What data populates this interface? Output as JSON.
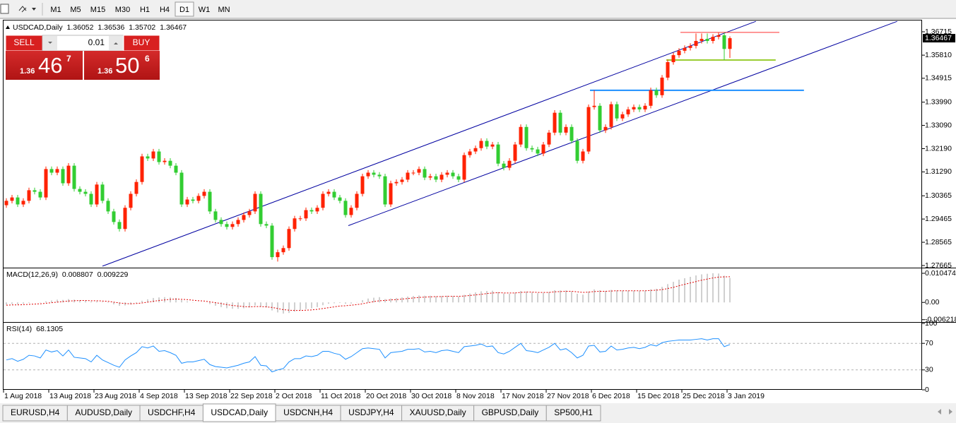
{
  "toolbar": {
    "timeframes": [
      "M1",
      "M5",
      "M15",
      "M30",
      "H1",
      "H4",
      "D1",
      "W1",
      "MN"
    ],
    "selected": "D1"
  },
  "trade": {
    "sell": "SELL",
    "buy": "BUY",
    "volume": "0.01",
    "bid": {
      "prefix": "1.36",
      "big": "46",
      "small": "7"
    },
    "ask": {
      "prefix": "1.36",
      "big": "50",
      "small": "6"
    }
  },
  "tabs": {
    "items": [
      "EURUSD,H4",
      "AUDUSD,Daily",
      "USDCHF,H4",
      "USDCAD,Daily",
      "USDCNH,H4",
      "USDJPY,H4",
      "XAUUSD,Daily",
      "GBPUSD,Daily",
      "SP500,H1"
    ],
    "selected": "USDCAD,Daily"
  },
  "chart_data": [
    {
      "type": "candlestick",
      "title": "USDCAD,Daily",
      "up_color": "#ff2200",
      "down_color": "#32cd32",
      "categories": [
        "1 Aug 2018",
        null,
        null,
        null,
        null,
        null,
        null,
        null,
        "13 Aug 2018",
        null,
        null,
        null,
        null,
        null,
        null,
        null,
        "23 Aug 2018",
        null,
        null,
        null,
        null,
        null,
        null,
        null,
        "4 Sep 2018",
        null,
        null,
        null,
        null,
        null,
        null,
        null,
        "13 Sep 2018",
        null,
        null,
        null,
        null,
        null,
        null,
        null,
        "22 Sep 2018",
        null,
        null,
        null,
        null,
        null,
        null,
        null,
        "2 Oct 2018",
        null,
        null,
        null,
        null,
        null,
        null,
        null,
        "11 Oct 2018",
        null,
        null,
        null,
        null,
        null,
        null,
        null,
        "20 Oct 2018",
        null,
        null,
        null,
        null,
        null,
        null,
        null,
        "30 Oct 2018",
        null,
        null,
        null,
        null,
        null,
        null,
        null,
        "8 Nov 2018",
        null,
        null,
        null,
        null,
        null,
        null,
        null,
        "17 Nov 2018",
        null,
        null,
        null,
        null,
        null,
        null,
        null,
        "27 Nov 2018",
        null,
        null,
        null,
        null,
        null,
        null,
        null,
        "6 Dec 2018",
        null,
        null,
        null,
        null,
        null,
        null,
        null,
        "15 Dec 2018",
        null,
        null,
        null,
        null,
        null,
        null,
        null,
        "25 Dec 2018",
        null,
        null,
        null,
        null,
        null,
        null,
        null,
        "3 Jan 2019"
      ],
      "open": [
        1.3,
        1.3017,
        1.303,
        1.3003,
        1.3017,
        1.3058,
        1.3052,
        1.303,
        1.314,
        1.3126,
        1.314,
        1.3085,
        1.3153,
        1.3063,
        1.3052,
        1.3044,
        1.3003,
        1.308,
        1.3017,
        1.2976,
        1.2935,
        1.2908,
        1.299,
        1.3044,
        1.309,
        1.3189,
        1.3181,
        1.3208,
        1.3167,
        1.3172,
        1.3153,
        1.3126,
        1.3003,
        1.3022,
        1.3017,
        1.3036,
        1.3052,
        1.2976,
        1.2943,
        1.2927,
        1.2916,
        1.2927,
        1.2943,
        1.2962,
        1.2976,
        1.3044,
        1.2927,
        1.2921,
        1.2799,
        1.2818,
        1.2834,
        1.2908,
        1.2949,
        1.2949,
        1.2981,
        1.2976,
        1.299,
        1.3044,
        1.3052,
        1.303,
        1.3017,
        1.2962,
        1.299,
        1.3044,
        1.3112,
        1.3126,
        1.3118,
        1.3112,
        1.3003,
        1.3085,
        1.309,
        1.3099,
        1.3126,
        1.3126,
        1.314,
        1.3107,
        1.3112,
        1.3099,
        1.3118,
        1.3126,
        1.3112,
        1.3099,
        1.3194,
        1.3208,
        1.3221,
        1.3249,
        1.3227,
        1.3235,
        1.3161,
        1.3145,
        1.3172,
        1.3235,
        1.3303,
        1.3221,
        1.3216,
        1.32,
        1.3235,
        1.3281,
        1.3358,
        1.3281,
        1.3303,
        1.3249,
        1.3172,
        1.3208,
        1.338,
        1.3385,
        1.329,
        1.3303,
        1.3391,
        1.3336,
        1.3352,
        1.3371,
        1.338,
        1.3371,
        1.3385,
        1.3445,
        1.3426,
        1.3494,
        1.3554,
        1.3581,
        1.3598,
        1.3609,
        1.3617,
        1.3636,
        1.3644,
        1.3636,
        1.3652,
        1.3658,
        1.36052
      ],
      "high": [
        1.3027,
        1.304,
        1.304,
        1.3027,
        1.3068,
        1.3068,
        1.3062,
        1.315,
        1.315,
        1.315,
        1.315,
        1.3163,
        1.3163,
        1.3073,
        1.3062,
        1.3054,
        1.309,
        1.309,
        1.3027,
        1.2986,
        1.2945,
        1.3,
        1.3054,
        1.31,
        1.3199,
        1.3199,
        1.3218,
        1.3218,
        1.3182,
        1.3182,
        1.3163,
        1.3136,
        1.3032,
        1.3032,
        1.3046,
        1.3062,
        1.3062,
        1.2986,
        1.2953,
        1.2937,
        1.2937,
        1.2953,
        1.2972,
        1.2986,
        1.3054,
        1.3054,
        1.2937,
        1.2931,
        1.2828,
        1.2844,
        1.2918,
        1.2959,
        1.2959,
        1.2991,
        1.2991,
        1.3,
        1.3054,
        1.3062,
        1.3062,
        1.304,
        1.3027,
        1.3,
        1.3054,
        1.3122,
        1.3136,
        1.3136,
        1.3128,
        1.3122,
        1.3095,
        1.31,
        1.3109,
        1.3136,
        1.3136,
        1.315,
        1.315,
        1.3122,
        1.3122,
        1.3128,
        1.3136,
        1.3136,
        1.3122,
        1.3204,
        1.3218,
        1.3231,
        1.3259,
        1.3259,
        1.3245,
        1.3245,
        1.3171,
        1.3182,
        1.3245,
        1.3313,
        1.3313,
        1.3231,
        1.3226,
        1.3245,
        1.3291,
        1.3368,
        1.3368,
        1.3313,
        1.3313,
        1.3259,
        1.3218,
        1.339,
        1.3445,
        1.3395,
        1.3313,
        1.3401,
        1.3401,
        1.3362,
        1.3381,
        1.339,
        1.339,
        1.3395,
        1.3455,
        1.3455,
        1.3504,
        1.3564,
        1.3591,
        1.3608,
        1.3619,
        1.3627,
        1.3665,
        1.3665,
        1.3665,
        1.3662,
        1.3668,
        1.3668,
        1.36536
      ],
      "low": [
        1.299,
        1.3007,
        1.2993,
        1.2993,
        1.3007,
        1.3042,
        1.302,
        1.302,
        1.3116,
        1.3116,
        1.3075,
        1.3075,
        1.3053,
        1.3042,
        1.3034,
        1.2993,
        1.2993,
        1.3007,
        1.2966,
        1.2925,
        1.2898,
        1.2898,
        1.298,
        1.3034,
        1.308,
        1.3171,
        1.3171,
        1.3157,
        1.3157,
        1.3143,
        1.3116,
        1.2993,
        1.2993,
        1.3007,
        1.3007,
        1.3026,
        1.2966,
        1.2933,
        1.2917,
        1.2906,
        1.2906,
        1.2917,
        1.2933,
        1.2952,
        1.2966,
        1.2917,
        1.2911,
        1.2789,
        1.2782,
        1.2808,
        1.2824,
        1.2898,
        1.2939,
        1.2939,
        1.2966,
        1.2966,
        1.298,
        1.3034,
        1.302,
        1.3007,
        1.2952,
        1.2952,
        1.298,
        1.3034,
        1.3102,
        1.3108,
        1.3102,
        1.2993,
        1.2993,
        1.3075,
        1.308,
        1.3089,
        1.3116,
        1.3116,
        1.3097,
        1.3097,
        1.3089,
        1.3089,
        1.3108,
        1.3102,
        1.3089,
        1.3089,
        1.3184,
        1.3198,
        1.3211,
        1.3217,
        1.3217,
        1.3151,
        1.3135,
        1.3135,
        1.3162,
        1.3225,
        1.3211,
        1.3206,
        1.319,
        1.319,
        1.3225,
        1.3271,
        1.3271,
        1.3271,
        1.3239,
        1.3162,
        1.3162,
        1.3198,
        1.337,
        1.328,
        1.328,
        1.3293,
        1.3326,
        1.3326,
        1.3342,
        1.3361,
        1.3361,
        1.3361,
        1.3375,
        1.3416,
        1.3416,
        1.3484,
        1.3544,
        1.3571,
        1.3588,
        1.3599,
        1.3607,
        1.3626,
        1.3626,
        1.3626,
        1.3642,
        1.3562,
        1.35702
      ],
      "close": [
        1.3017,
        1.303,
        1.3003,
        1.3017,
        1.3058,
        1.3052,
        1.303,
        1.314,
        1.3126,
        1.314,
        1.3085,
        1.3153,
        1.3063,
        1.3052,
        1.3044,
        1.3003,
        1.308,
        1.3017,
        1.2976,
        1.2935,
        1.2908,
        1.299,
        1.3044,
        1.309,
        1.3189,
        1.3181,
        1.3208,
        1.3167,
        1.3172,
        1.3153,
        1.3126,
        1.3003,
        1.3022,
        1.3017,
        1.3036,
        1.3052,
        1.2976,
        1.2943,
        1.2927,
        1.2916,
        1.2927,
        1.2943,
        1.2962,
        1.2976,
        1.3044,
        1.2927,
        1.2921,
        1.2799,
        1.2818,
        1.2834,
        1.2908,
        1.2949,
        1.2949,
        1.2981,
        1.2976,
        1.299,
        1.3044,
        1.3052,
        1.303,
        1.3017,
        1.2962,
        1.299,
        1.3044,
        1.3112,
        1.3126,
        1.3118,
        1.3112,
        1.3003,
        1.3085,
        1.309,
        1.3099,
        1.3126,
        1.3126,
        1.314,
        1.3107,
        1.3112,
        1.3099,
        1.3118,
        1.3126,
        1.3112,
        1.3099,
        1.3194,
        1.3208,
        1.3221,
        1.3249,
        1.3227,
        1.3235,
        1.3161,
        1.3145,
        1.3172,
        1.3235,
        1.3303,
        1.3221,
        1.3216,
        1.32,
        1.3235,
        1.3281,
        1.3358,
        1.3281,
        1.3303,
        1.3249,
        1.3172,
        1.3208,
        1.338,
        1.3385,
        1.329,
        1.3303,
        1.3391,
        1.3336,
        1.3352,
        1.3371,
        1.338,
        1.3371,
        1.3385,
        1.3445,
        1.3426,
        1.3494,
        1.3554,
        1.3581,
        1.3598,
        1.3609,
        1.3617,
        1.3636,
        1.3644,
        1.3636,
        1.3652,
        1.3658,
        1.3605,
        1.36467
      ],
      "ylim": [
        1.2761,
        1.3718
      ],
      "yticks": [
        1.36715,
        {
          "value": 1.3581,
          "label": "1.35810"
        },
        1.34915,
        {
          "value": 1.3399,
          "label": "1.33990"
        },
        {
          "value": 1.3309,
          "label": "1.33090"
        },
        {
          "value": 1.3219,
          "label": "1.32190"
        },
        {
          "value": 1.3129,
          "label": "1.31290"
        },
        1.30365,
        1.29465,
        1.28565,
        1.27665
      ],
      "lines": [
        {
          "color": "#0000a0",
          "width": 1,
          "x": [
            17,
            132.6
          ],
          "y": [
            1.2764,
            1.3712
          ]
        },
        {
          "color": "#0000a0",
          "width": 1,
          "x": [
            60.5,
            157.6
          ],
          "y": [
            1.2921,
            1.3712
          ]
        },
        {
          "color": "#ff3030",
          "width": 1,
          "x": [
            119.25,
            136.75
          ],
          "y": [
            1.3669,
            1.3669
          ]
        },
        {
          "color": "#9acd32",
          "width": 2,
          "x": [
            116.75,
            136.1
          ],
          "y": [
            1.3562,
            1.3562
          ]
        },
        {
          "color": "#1e90ff",
          "width": 2,
          "x": [
            103.25,
            141.1
          ],
          "y": [
            1.3445,
            1.3445
          ]
        }
      ]
    },
    {
      "type": "macd",
      "title": "MACD(12,26,9)",
      "histogram_color": "#c0c0c0",
      "signal_color": "#e00000",
      "histogram": [
        -0.0008,
        -0.0006,
        -0.0007,
        -0.0005,
        -0.0002,
        0.0,
        -0.0001,
        0.0004,
        0.0007,
        0.001,
        0.0009,
        0.0012,
        0.001,
        0.0008,
        0.0006,
        0.0003,
        0.0004,
        0.0002,
        -0.0002,
        -0.0007,
        -0.0012,
        -0.0011,
        -0.0007,
        -0.0002,
        0.0006,
        0.0011,
        0.0016,
        0.0018,
        0.0019,
        0.0018,
        0.0016,
        0.0008,
        0.0004,
        0.0001,
        0.0,
        0.0,
        -0.0006,
        -0.0012,
        -0.0017,
        -0.0021,
        -0.0023,
        -0.0023,
        -0.0021,
        -0.0018,
        -0.0011,
        -0.0015,
        -0.0018,
        -0.0029,
        -0.0036,
        -0.004,
        -0.0038,
        -0.0033,
        -0.0029,
        -0.0024,
        -0.0021,
        -0.0017,
        -0.001,
        -0.0005,
        -0.0003,
        -0.0002,
        -0.0005,
        -0.0004,
        0.0001,
        0.0008,
        0.0014,
        0.0017,
        0.0019,
        0.0012,
        0.0014,
        0.0016,
        0.0018,
        0.0021,
        0.0023,
        0.0025,
        0.0024,
        0.0024,
        0.0022,
        0.0023,
        0.0024,
        0.0023,
        0.0021,
        0.0027,
        0.0032,
        0.0036,
        0.004,
        0.0041,
        0.0042,
        0.0037,
        0.0032,
        0.0031,
        0.0035,
        0.0041,
        0.0039,
        0.0036,
        0.0033,
        0.0034,
        0.0037,
        0.0044,
        0.0043,
        0.0043,
        0.0039,
        0.0031,
        0.0028,
        0.0039,
        0.0047,
        0.0044,
        0.0041,
        0.0045,
        0.0043,
        0.0042,
        0.0042,
        0.0042,
        0.0041,
        0.0042,
        0.0047,
        0.0049,
        0.0056,
        0.0066,
        0.0074,
        0.0082,
        0.0087,
        0.0092,
        0.0097,
        0.0101,
        0.0103,
        0.0105,
        0.0104,
        0.0096,
        0.008807
      ],
      "signal": [
        -0.001,
        -0.0009,
        -0.0009,
        -0.0008,
        -0.0007,
        -0.0006,
        -0.0005,
        -0.0003,
        -0.0001,
        0.0001,
        0.0003,
        0.0005,
        0.0006,
        0.0007,
        0.0007,
        0.0006,
        0.0006,
        0.0005,
        0.0004,
        0.0001,
        -0.0002,
        -0.0004,
        -0.0005,
        -0.0004,
        -0.0002,
        0.0001,
        0.0004,
        0.0007,
        0.0009,
        0.0011,
        0.0012,
        0.0011,
        0.001,
        0.0008,
        0.0006,
        0.0005,
        0.0002,
        -0.0001,
        -0.0004,
        -0.0008,
        -0.0011,
        -0.0013,
        -0.0015,
        -0.0016,
        -0.0015,
        -0.0015,
        -0.0016,
        -0.0018,
        -0.0022,
        -0.0026,
        -0.0028,
        -0.0029,
        -0.0029,
        -0.0028,
        -0.0027,
        -0.0025,
        -0.0022,
        -0.0019,
        -0.0016,
        -0.0013,
        -0.0012,
        -0.001,
        -0.0008,
        -0.0005,
        -0.0001,
        0.0003,
        0.0006,
        0.0007,
        0.0009,
        0.001,
        0.0012,
        0.0014,
        0.0016,
        0.0018,
        0.0019,
        0.002,
        0.0021,
        0.0021,
        0.0022,
        0.0022,
        0.0022,
        0.0023,
        0.0025,
        0.0027,
        0.0029,
        0.0032,
        0.0034,
        0.0035,
        0.0034,
        0.0034,
        0.0034,
        0.0036,
        0.0037,
        0.0037,
        0.0036,
        0.0036,
        0.0036,
        0.0038,
        0.0039,
        0.004,
        0.004,
        0.0038,
        0.0036,
        0.0037,
        0.0039,
        0.004,
        0.004,
        0.0041,
        0.0042,
        0.0042,
        0.0042,
        0.0042,
        0.0042,
        0.0042,
        0.0043,
        0.0044,
        0.0046,
        0.005,
        0.0054,
        0.006,
        0.0065,
        0.007,
        0.0075,
        0.008,
        0.0084,
        0.0088,
        0.0091,
        0.0092,
        0.009229
      ],
      "ylim": [
        -0.0068,
        0.012
      ],
      "yticks": [
        0.010474,
        {
          "value": 0,
          "label": "0.00"
        },
        -0.006218
      ]
    },
    {
      "type": "rsi",
      "title": "RSI(14)",
      "color": "#1e90ff",
      "values": [
        45,
        47,
        43,
        46,
        52,
        51,
        48,
        60,
        57,
        59,
        51,
        60,
        49,
        48,
        47,
        42,
        52,
        45,
        41,
        37,
        34,
        45,
        51,
        56,
        65,
        63,
        66,
        58,
        59,
        56,
        52,
        40,
        42,
        42,
        44,
        46,
        38,
        35,
        34,
        33,
        35,
        37,
        40,
        42,
        50,
        37,
        36,
        27,
        30,
        32,
        42,
        47,
        47,
        51,
        50,
        52,
        58,
        58,
        55,
        53,
        46,
        50,
        56,
        62,
        63,
        62,
        61,
        48,
        56,
        57,
        58,
        61,
        61,
        62,
        57,
        58,
        56,
        59,
        60,
        58,
        56,
        65,
        66,
        67,
        69,
        65,
        66,
        56,
        54,
        58,
        64,
        70,
        59,
        58,
        56,
        60,
        64,
        70,
        60,
        62,
        56,
        48,
        52,
        66,
        67,
        57,
        58,
        66,
        60,
        61,
        63,
        64,
        62,
        64,
        68,
        66,
        71,
        73,
        74,
        75,
        75,
        75,
        76,
        77,
        75,
        77,
        77,
        65,
        68.1305
      ],
      "ylim": [
        0,
        100
      ],
      "yticks": [
        100,
        70,
        30,
        0
      ]
    }
  ]
}
